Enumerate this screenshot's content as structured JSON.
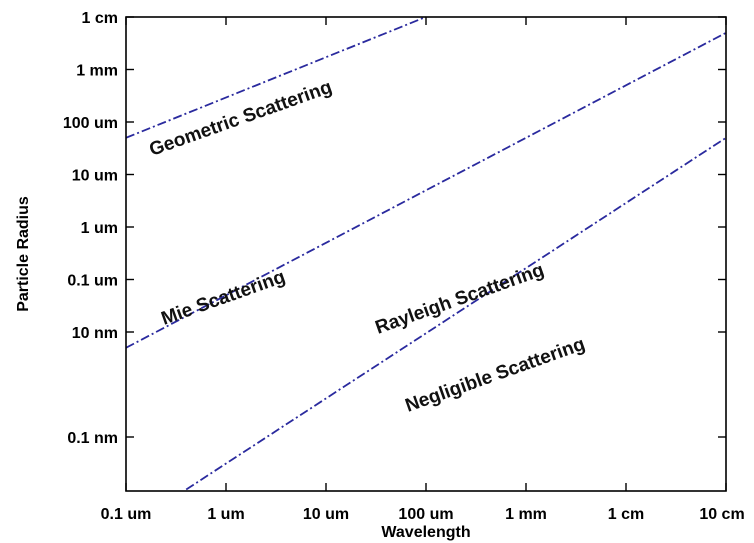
{
  "chart_data": {
    "type": "line",
    "title": "",
    "xlabel": "Wavelength",
    "ylabel": "Particle Radius",
    "x_scale": "log",
    "y_scale": "log",
    "x_ticks": [
      {
        "label": "0.1 um",
        "value": 1e-07
      },
      {
        "label": "1 um",
        "value": 1e-06
      },
      {
        "label": "10 um",
        "value": 1e-05
      },
      {
        "label": "100 um",
        "value": 0.0001
      },
      {
        "label": "1 mm",
        "value": 0.001
      },
      {
        "label": "1 cm",
        "value": 0.01
      },
      {
        "label": "10 cm",
        "value": 0.1
      }
    ],
    "y_ticks": [
      {
        "label": "0.1 nm",
        "value": 1e-10
      },
      {
        "label": "10 nm",
        "value": 1e-08
      },
      {
        "label": "0.1 um",
        "value": 1e-07
      },
      {
        "label": "1 um",
        "value": 1e-06
      },
      {
        "label": "10 um",
        "value": 1e-05
      },
      {
        "label": "100 um",
        "value": 0.0001
      },
      {
        "label": "1 mm",
        "value": 0.001
      },
      {
        "label": "1 cm",
        "value": 0.01
      }
    ],
    "series": [
      {
        "x": [
          1e-07,
          0.002
        ],
        "y": [
          5e-05,
          0.1
        ]
      },
      {
        "x": [
          1e-07,
          0.1
        ],
        "y": [
          5e-09,
          0.005
        ]
      },
      {
        "x": [
          4e-07,
          0.1
        ],
        "y": [
          1e-11,
          5e-05
        ]
      }
    ],
    "annotations": [
      {
        "text": "Geometric Scattering"
      },
      {
        "text": "Mie Scattering"
      },
      {
        "text": "Rayleigh Scattering"
      },
      {
        "text": "Negligible Scattering"
      }
    ],
    "grid": false,
    "line_style": "dash-dot",
    "line_color": "#2a2a9e"
  }
}
